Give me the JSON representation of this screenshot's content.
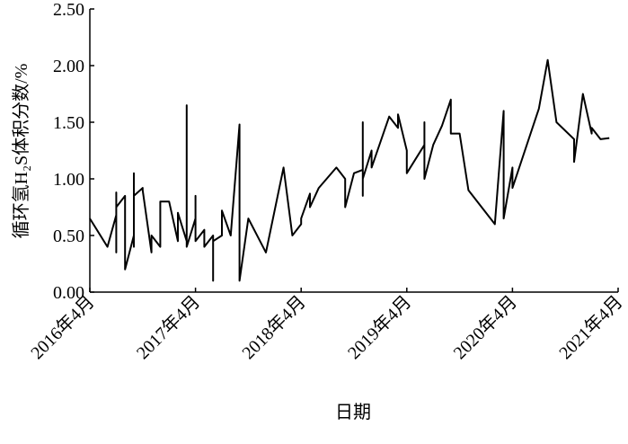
{
  "chart_data": {
    "type": "line",
    "xlabel": "日期",
    "ylabel": "循环氢H₂S体积分数/%",
    "xlim": [
      "2016-04",
      "2021-04"
    ],
    "xticks": [
      {
        "value": "2016-04",
        "label": "2016年4月"
      },
      {
        "value": "2017-04",
        "label": "2017年4月"
      },
      {
        "value": "2018-04",
        "label": "2018年4月"
      },
      {
        "value": "2019-04",
        "label": "2019年4月"
      },
      {
        "value": "2020-04",
        "label": "2020年4月"
      },
      {
        "value": "2021-04",
        "label": "2021年4月"
      }
    ],
    "ylim": [
      0,
      2.5
    ],
    "yticks": [
      {
        "value": 0,
        "label": "0.00"
      },
      {
        "value": 0.5,
        "label": "0.50"
      },
      {
        "value": 1,
        "label": "1.00"
      },
      {
        "value": 1.5,
        "label": "1.50"
      },
      {
        "value": 2,
        "label": "2.00"
      },
      {
        "value": 2.5,
        "label": "2.50"
      }
    ],
    "color": "#000000",
    "x": [
      "2016-04",
      "2016-06",
      "2016-07",
      "2016-07",
      "2016-07",
      "2016-07",
      "2016-07",
      "2016-08",
      "2016-08",
      "2016-08",
      "2016-09",
      "2016-09",
      "2016-09",
      "2016-09",
      "2016-10",
      "2016-10",
      "2016-11",
      "2016-11",
      "2016-12",
      "2016-12",
      "2016-12",
      "2017-01",
      "2017-02",
      "2017-02",
      "2017-03",
      "2017-03",
      "2017-03",
      "2017-03",
      "2017-04",
      "2017-04",
      "2017-04",
      "2017-05",
      "2017-05",
      "2017-06",
      "2017-06",
      "2017-06",
      "2017-07",
      "2017-07",
      "2017-08",
      "2017-09",
      "2017-09",
      "2017-10",
      "2017-12",
      "2018-02",
      "2018-03",
      "2018-04",
      "2018-04",
      "2018-05",
      "2018-05",
      "2018-06",
      "2018-08",
      "2018-09",
      "2018-09",
      "2018-10",
      "2018-11",
      "2018-11",
      "2018-11",
      "2018-11",
      "2018-12",
      "2018-12",
      "2019-02",
      "2019-02",
      "2019-03",
      "2019-03",
      "2019-04",
      "2019-04",
      "2019-06",
      "2019-06",
      "2019-06",
      "2019-07",
      "2019-08",
      "2019-09",
      "2019-09",
      "2019-10",
      "2019-11",
      "2020-02",
      "2020-03",
      "2020-03",
      "2020-04",
      "2020-04",
      "2020-07",
      "2020-08",
      "2020-09",
      "2020-11",
      "2020-11",
      "2020-12",
      "2021-01",
      "2021-01",
      "2021-02",
      "2021-03"
    ],
    "values": [
      0.65,
      0.4,
      0.68,
      0.6,
      0.35,
      0.88,
      0.75,
      0.85,
      0.55,
      0.2,
      0.5,
      0.4,
      1.05,
      0.85,
      0.92,
      0.9,
      0.35,
      0.5,
      0.4,
      0.55,
      0.8,
      0.8,
      0.45,
      0.7,
      0.45,
      0.8,
      1.65,
      0.4,
      0.65,
      0.85,
      0.45,
      0.55,
      0.4,
      0.5,
      0.1,
      0.45,
      0.5,
      0.72,
      0.5,
      1.48,
      0.1,
      0.65,
      0.35,
      1.1,
      0.5,
      0.6,
      0.65,
      0.87,
      0.75,
      0.92,
      1.1,
      1.0,
      0.75,
      1.05,
      1.08,
      0.85,
      1.5,
      1.0,
      1.25,
      1.1,
      1.55,
      1.55,
      1.45,
      1.57,
      1.25,
      1.05,
      1.3,
      1.5,
      1.0,
      1.3,
      1.47,
      1.7,
      1.4,
      1.4,
      0.9,
      0.6,
      1.6,
      0.65,
      1.1,
      0.92,
      1.62,
      2.05,
      1.5,
      1.35,
      1.15,
      1.75,
      1.4,
      1.45,
      1.35,
      1.36
    ]
  }
}
